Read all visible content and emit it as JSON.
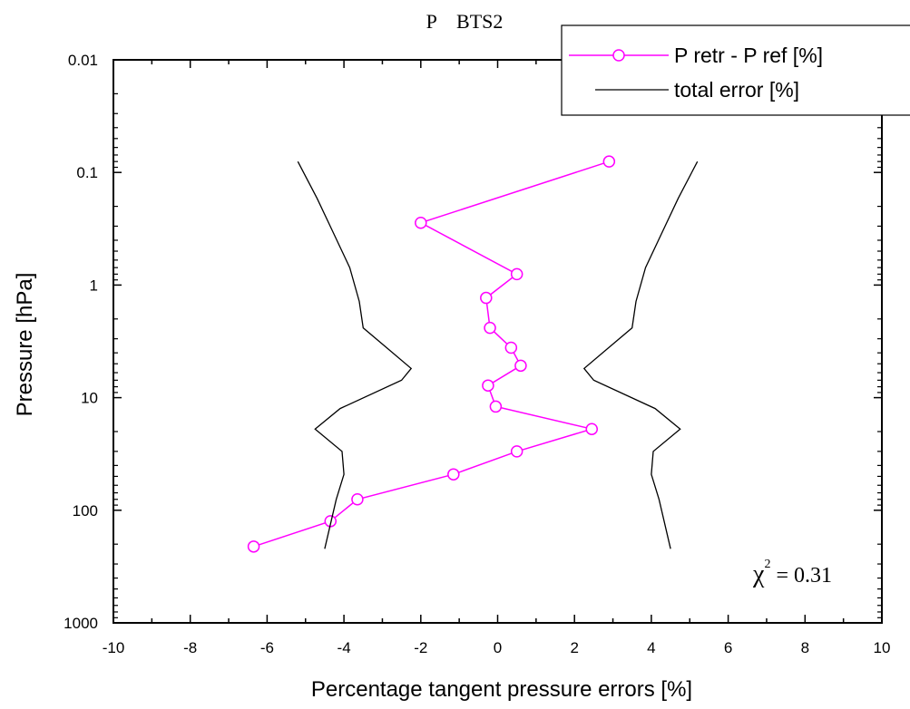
{
  "chart_data": {
    "type": "line",
    "title": "P    BTS2",
    "xlabel": "Percentage tangent pressure errors [%]",
    "ylabel": "Pressure [hPa]",
    "xlim": [
      -10,
      10
    ],
    "ylim": [
      1000,
      0.01
    ],
    "y_scale": "log-inverted",
    "x_ticks": [
      "-10",
      "-8",
      "-6",
      "-4",
      "-2",
      "0",
      "2",
      "4",
      "6",
      "8",
      "10"
    ],
    "y_ticks": [
      "0.01",
      "0.1",
      "1",
      "10",
      "100",
      "1000"
    ],
    "legend_position": "top-right",
    "series": [
      {
        "name": "P retr - P ref [%]",
        "color": "#ff00ff",
        "marker": "circle",
        "points": [
          {
            "x": 2.9,
            "y": 0.08
          },
          {
            "x": -2.0,
            "y": 0.28
          },
          {
            "x": 0.5,
            "y": 0.8
          },
          {
            "x": -0.3,
            "y": 1.3
          },
          {
            "x": -0.2,
            "y": 2.4
          },
          {
            "x": 0.35,
            "y": 3.6
          },
          {
            "x": 0.6,
            "y": 5.2
          },
          {
            "x": -0.25,
            "y": 7.8
          },
          {
            "x": -0.05,
            "y": 12
          },
          {
            "x": 2.45,
            "y": 19
          },
          {
            "x": 0.5,
            "y": 30
          },
          {
            "x": -1.15,
            "y": 48
          },
          {
            "x": -3.65,
            "y": 80
          },
          {
            "x": -4.35,
            "y": 125
          },
          {
            "x": -6.35,
            "y": 210
          }
        ]
      },
      {
        "name": "total error [%]",
        "color": "#000000",
        "points": [
          {
            "x": -5.2,
            "y": 0.08
          },
          {
            "x": -4.7,
            "y": 0.17
          },
          {
            "x": -4.3,
            "y": 0.33
          },
          {
            "x": -3.85,
            "y": 0.7
          },
          {
            "x": -3.6,
            "y": 1.4
          },
          {
            "x": -3.5,
            "y": 2.4
          },
          {
            "x": -2.25,
            "y": 5.5
          },
          {
            "x": -2.5,
            "y": 7.0
          },
          {
            "x": -4.1,
            "y": 12.5
          },
          {
            "x": -4.75,
            "y": 19
          },
          {
            "x": -4.05,
            "y": 30
          },
          {
            "x": -4.0,
            "y": 48
          },
          {
            "x": -4.2,
            "y": 80
          },
          {
            "x": -4.5,
            "y": 220
          }
        ]
      },
      {
        "name": "",
        "color": "#000000",
        "points": [
          {
            "x": 5.2,
            "y": 0.08
          },
          {
            "x": 4.7,
            "y": 0.17
          },
          {
            "x": 4.3,
            "y": 0.33
          },
          {
            "x": 3.85,
            "y": 0.7
          },
          {
            "x": 3.6,
            "y": 1.4
          },
          {
            "x": 3.5,
            "y": 2.4
          },
          {
            "x": 2.25,
            "y": 5.5
          },
          {
            "x": 2.5,
            "y": 7.0
          },
          {
            "x": 4.1,
            "y": 12.5
          },
          {
            "x": 4.75,
            "y": 19
          },
          {
            "x": 4.05,
            "y": 30
          },
          {
            "x": 4.0,
            "y": 48
          },
          {
            "x": 4.2,
            "y": 80
          },
          {
            "x": 4.5,
            "y": 220
          }
        ]
      }
    ],
    "annotations": [
      {
        "text": "χ",
        "superscript": "2",
        "rest": " = 0.31",
        "x": 7.4,
        "y": 350
      }
    ]
  }
}
